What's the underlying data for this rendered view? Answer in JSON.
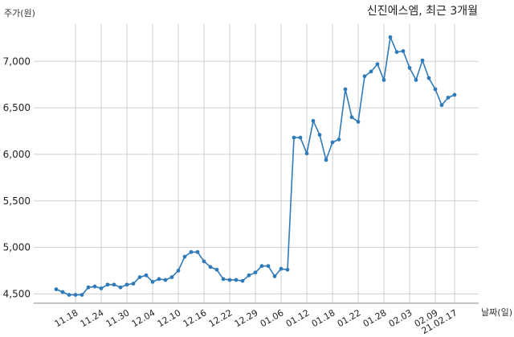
{
  "chart_data": {
    "type": "line",
    "title": "신진에스엠, 최근 3개월",
    "ylabel": "주가(원)",
    "xlabel": "날짜(일)",
    "ylim": [
      4400,
      7400
    ],
    "yticks": [
      4500,
      5000,
      5500,
      6000,
      6500,
      7000
    ],
    "ytick_labels": [
      "4,500",
      "5,000",
      "5,500",
      "6,000",
      "6,500",
      "7,000"
    ],
    "x_tick_labels": [
      {
        "label": "11.18",
        "index": 3
      },
      {
        "label": "11.24",
        "index": 7
      },
      {
        "label": "11.30",
        "index": 11
      },
      {
        "label": "12.04",
        "index": 15
      },
      {
        "label": "12.10",
        "index": 19
      },
      {
        "label": "12.16",
        "index": 23
      },
      {
        "label": "12.22",
        "index": 27
      },
      {
        "label": "12.29",
        "index": 31
      },
      {
        "label": "01.06",
        "index": 35
      },
      {
        "label": "01.12",
        "index": 39
      },
      {
        "label": "01.18",
        "index": 43
      },
      {
        "label": "01.22",
        "index": 47
      },
      {
        "label": "01.28",
        "index": 51
      },
      {
        "label": "02.03",
        "index": 55
      },
      {
        "label": "02.09",
        "index": 59
      },
      {
        "label": "21.02.17",
        "index": 62
      }
    ],
    "grid": true,
    "color": "#2f7ab8",
    "values": [
      4550,
      4520,
      4490,
      4490,
      4490,
      4570,
      4580,
      4560,
      4600,
      4600,
      4570,
      4600,
      4610,
      4680,
      4700,
      4630,
      4660,
      4650,
      4680,
      4750,
      4900,
      4950,
      4950,
      4850,
      4790,
      4760,
      4660,
      4650,
      4650,
      4640,
      4700,
      4730,
      4800,
      4800,
      4690,
      4770,
      4760,
      6180,
      6180,
      6010,
      6360,
      6210,
      5940,
      6130,
      6160,
      6700,
      6400,
      6350,
      6840,
      6890,
      6970,
      6800,
      7260,
      7100,
      7110,
      6930,
      6800,
      7010,
      6820,
      6700,
      6530,
      6610,
      6640
    ]
  }
}
